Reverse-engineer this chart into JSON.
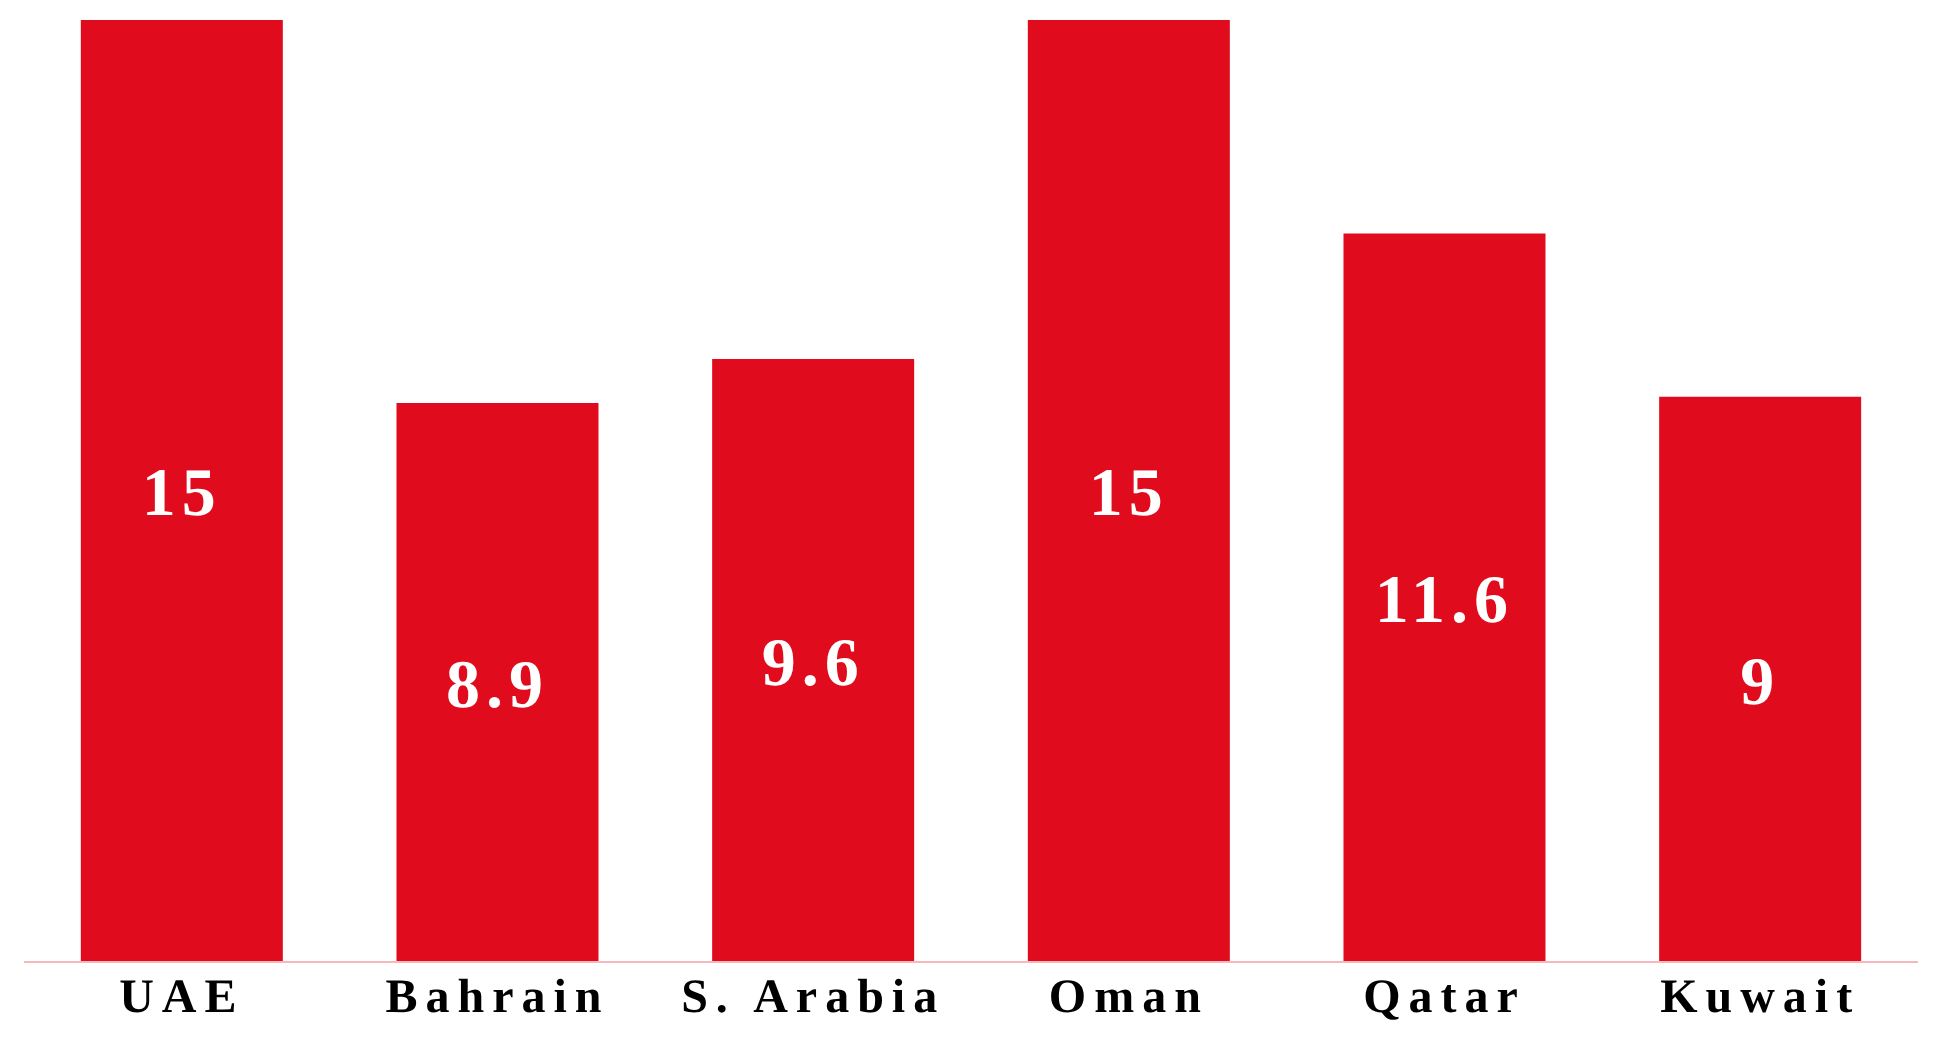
{
  "chart_data": {
    "type": "bar",
    "categories": [
      "UAE",
      "Bahrain",
      "S. Arabia",
      "Oman",
      "Qatar",
      "Kuwait"
    ],
    "values": [
      15,
      8.9,
      9.6,
      15,
      11.6,
      9
    ],
    "color": "#e00b1c",
    "data_labels": true,
    "grid": false,
    "legend": false
  }
}
